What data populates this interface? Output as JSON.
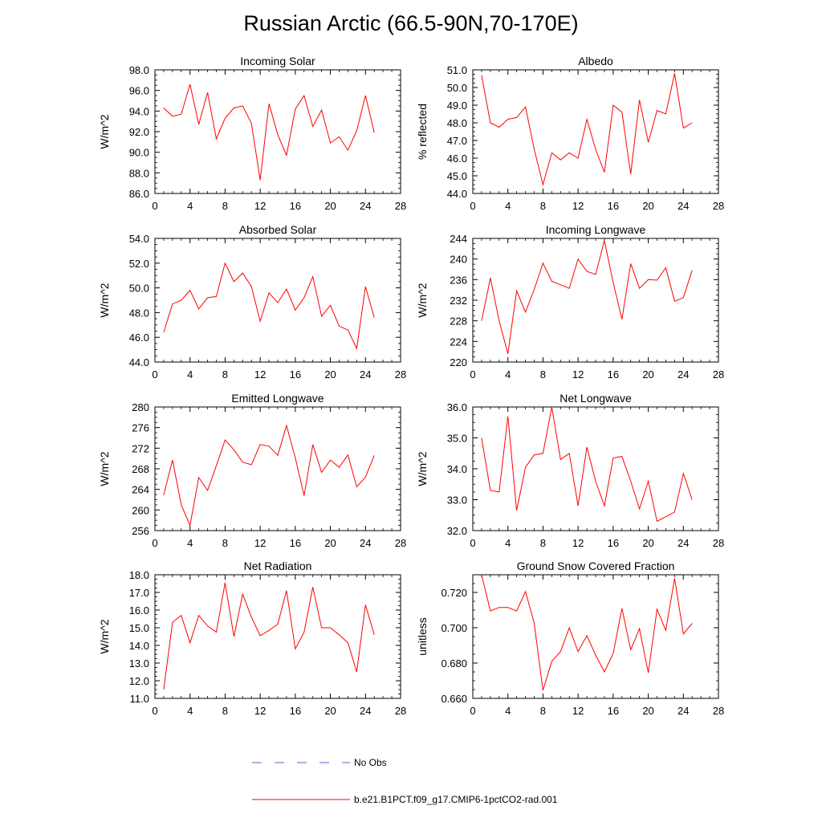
{
  "title": "Russian Arctic (66.5-90N,70-170E)",
  "chart_data": [
    {
      "type": "line",
      "title": "Incoming Solar",
      "ylabel": "W/m^2",
      "xlim": [
        0,
        28
      ],
      "ylim": [
        86,
        98
      ],
      "xticks": [
        0,
        4,
        8,
        12,
        16,
        20,
        24,
        28
      ],
      "yticks": [
        86,
        88,
        90,
        92,
        94,
        96,
        98
      ],
      "ydecimals": 1,
      "x": [
        1,
        2,
        3,
        4,
        5,
        6,
        7,
        8,
        9,
        10,
        11,
        12,
        13,
        14,
        15,
        16,
        17,
        18,
        19,
        20,
        21,
        22,
        23,
        24,
        25
      ],
      "values": [
        94.3,
        93.5,
        93.7,
        96.6,
        92.7,
        95.8,
        91.3,
        93.3,
        94.3,
        94.5,
        92.8,
        87.3,
        94.7,
        91.7,
        89.7,
        94.2,
        95.5,
        92.5,
        94.1,
        90.9,
        91.5,
        90.2,
        92.1,
        95.5,
        91.9
      ]
    },
    {
      "type": "line",
      "title": "Albedo",
      "ylabel": "% reflected",
      "xlim": [
        0,
        28
      ],
      "ylim": [
        44,
        51
      ],
      "xticks": [
        0,
        4,
        8,
        12,
        16,
        20,
        24,
        28
      ],
      "yticks": [
        44,
        45,
        46,
        47,
        48,
        49,
        50,
        51
      ],
      "ydecimals": 1,
      "x": [
        1,
        2,
        3,
        4,
        5,
        6,
        7,
        8,
        9,
        10,
        11,
        12,
        13,
        14,
        15,
        16,
        17,
        18,
        19,
        20,
        21,
        22,
        23,
        24,
        25
      ],
      "values": [
        50.7,
        48.0,
        47.75,
        48.2,
        48.3,
        48.9,
        46.5,
        44.5,
        46.3,
        45.9,
        46.3,
        46.0,
        48.2,
        46.5,
        45.2,
        49.0,
        48.6,
        45.1,
        49.3,
        46.9,
        48.7,
        48.5,
        50.8,
        47.7,
        48.0
      ]
    },
    {
      "type": "line",
      "title": "Absorbed Solar",
      "ylabel": "W/m^2",
      "xlim": [
        0,
        28
      ],
      "ylim": [
        44,
        54
      ],
      "xticks": [
        0,
        4,
        8,
        12,
        16,
        20,
        24,
        28
      ],
      "yticks": [
        44,
        46,
        48,
        50,
        52,
        54
      ],
      "ydecimals": 1,
      "x": [
        1,
        2,
        3,
        4,
        5,
        6,
        7,
        8,
        9,
        10,
        11,
        12,
        13,
        14,
        15,
        16,
        17,
        18,
        19,
        20,
        21,
        22,
        23,
        24,
        25
      ],
      "values": [
        46.4,
        48.7,
        49.0,
        49.8,
        48.3,
        49.2,
        49.3,
        52.0,
        50.5,
        51.2,
        50.1,
        47.3,
        49.6,
        48.8,
        49.9,
        48.2,
        49.2,
        50.9,
        47.7,
        48.6,
        46.9,
        46.6,
        45.1,
        50.1,
        47.6
      ]
    },
    {
      "type": "line",
      "title": "Incoming Longwave",
      "ylabel": "W/m^2",
      "xlim": [
        0,
        28
      ],
      "ylim": [
        220,
        244
      ],
      "xticks": [
        0,
        4,
        8,
        12,
        16,
        20,
        24,
        28
      ],
      "yticks": [
        220,
        224,
        228,
        232,
        236,
        240,
        244
      ],
      "ydecimals": 0,
      "x": [
        1,
        2,
        3,
        4,
        5,
        6,
        7,
        8,
        9,
        10,
        11,
        12,
        13,
        14,
        15,
        16,
        17,
        18,
        19,
        20,
        21,
        22,
        23,
        24,
        25
      ],
      "values": [
        228.0,
        236.3,
        228.0,
        221.6,
        233.8,
        229.7,
        234.1,
        239.2,
        235.7,
        235.0,
        234.3,
        240.0,
        237.6,
        237.0,
        243.6,
        235.4,
        228.3,
        239.1,
        234.3,
        236.0,
        235.9,
        238.3,
        231.8,
        232.5,
        237.8
      ]
    },
    {
      "type": "line",
      "title": "Emitted Longwave",
      "ylabel": "W/m^2",
      "xlim": [
        0,
        28
      ],
      "ylim": [
        256,
        280
      ],
      "xticks": [
        0,
        4,
        8,
        12,
        16,
        20,
        24,
        28
      ],
      "yticks": [
        256,
        260,
        264,
        268,
        272,
        276,
        280
      ],
      "ydecimals": 0,
      "x": [
        1,
        2,
        3,
        4,
        5,
        6,
        7,
        8,
        9,
        10,
        11,
        12,
        13,
        14,
        15,
        16,
        17,
        18,
        19,
        20,
        21,
        22,
        23,
        24,
        25
      ],
      "values": [
        262.9,
        269.7,
        261.0,
        257.0,
        266.3,
        263.8,
        268.6,
        273.6,
        271.7,
        269.3,
        268.8,
        272.7,
        272.4,
        270.6,
        276.4,
        270.1,
        262.8,
        272.7,
        267.3,
        269.7,
        268.3,
        270.7,
        264.5,
        266.4,
        270.6
      ]
    },
    {
      "type": "line",
      "title": "Net Longwave",
      "ylabel": "W/m^2",
      "xlim": [
        0,
        28
      ],
      "ylim": [
        32,
        36
      ],
      "xticks": [
        0,
        4,
        8,
        12,
        16,
        20,
        24,
        28
      ],
      "yticks": [
        32,
        33,
        34,
        35,
        36
      ],
      "ydecimals": 1,
      "x": [
        1,
        2,
        3,
        4,
        5,
        6,
        7,
        8,
        9,
        10,
        11,
        12,
        13,
        14,
        15,
        16,
        17,
        18,
        19,
        20,
        21,
        22,
        23,
        24,
        25
      ],
      "values": [
        35.0,
        33.3,
        33.25,
        35.7,
        32.65,
        34.05,
        34.45,
        34.5,
        36.0,
        34.3,
        34.5,
        32.8,
        34.7,
        33.6,
        32.8,
        34.35,
        34.4,
        33.6,
        32.7,
        33.6,
        32.3,
        32.45,
        32.6,
        33.85,
        33.0
      ]
    },
    {
      "type": "line",
      "title": "Net Radiation",
      "ylabel": "W/m^2",
      "xlim": [
        0,
        28
      ],
      "ylim": [
        11,
        18
      ],
      "xticks": [
        0,
        4,
        8,
        12,
        16,
        20,
        24,
        28
      ],
      "yticks": [
        11,
        12,
        13,
        14,
        15,
        16,
        17,
        18
      ],
      "ydecimals": 1,
      "x": [
        1,
        2,
        3,
        4,
        5,
        6,
        7,
        8,
        9,
        10,
        11,
        12,
        13,
        14,
        15,
        16,
        17,
        18,
        19,
        20,
        21,
        22,
        23,
        24,
        25
      ],
      "values": [
        11.5,
        15.3,
        15.7,
        14.15,
        15.7,
        15.1,
        14.75,
        17.55,
        14.5,
        16.9,
        15.6,
        14.55,
        14.85,
        15.2,
        17.1,
        13.8,
        14.75,
        17.3,
        15.0,
        15.0,
        14.6,
        14.15,
        12.5,
        16.3,
        14.6
      ]
    },
    {
      "type": "line",
      "title": "Ground Snow Covered Fraction",
      "ylabel": "unitless",
      "xlim": [
        0,
        28
      ],
      "ylim": [
        0.66,
        0.73
      ],
      "xticks": [
        0,
        4,
        8,
        12,
        16,
        20,
        24,
        28
      ],
      "yticks": [
        0.66,
        0.68,
        0.7,
        0.72
      ],
      "minor_yticks": [
        0.665,
        0.67,
        0.675,
        0.685,
        0.69,
        0.695,
        0.705,
        0.71,
        0.715,
        0.725
      ],
      "ydecimals": 3,
      "x": [
        1,
        2,
        3,
        4,
        5,
        6,
        7,
        8,
        9,
        10,
        11,
        12,
        13,
        14,
        15,
        16,
        17,
        18,
        19,
        20,
        21,
        22,
        23,
        24,
        25
      ],
      "values": [
        0.73,
        0.7095,
        0.7115,
        0.7115,
        0.7095,
        0.7205,
        0.7025,
        0.6645,
        0.681,
        0.6865,
        0.7,
        0.6865,
        0.6955,
        0.6845,
        0.675,
        0.6855,
        0.711,
        0.6875,
        0.6995,
        0.6745,
        0.7105,
        0.6985,
        0.728,
        0.6965,
        0.7025
      ]
    }
  ],
  "legend": [
    {
      "label": "No Obs",
      "color": "#5566cc",
      "style": "dashed"
    },
    {
      "label": "b.e21.B1PCT.f09_g17.CMIP6-1pctCO2-rad.001",
      "color": "#ff0000",
      "style": "solid"
    }
  ]
}
